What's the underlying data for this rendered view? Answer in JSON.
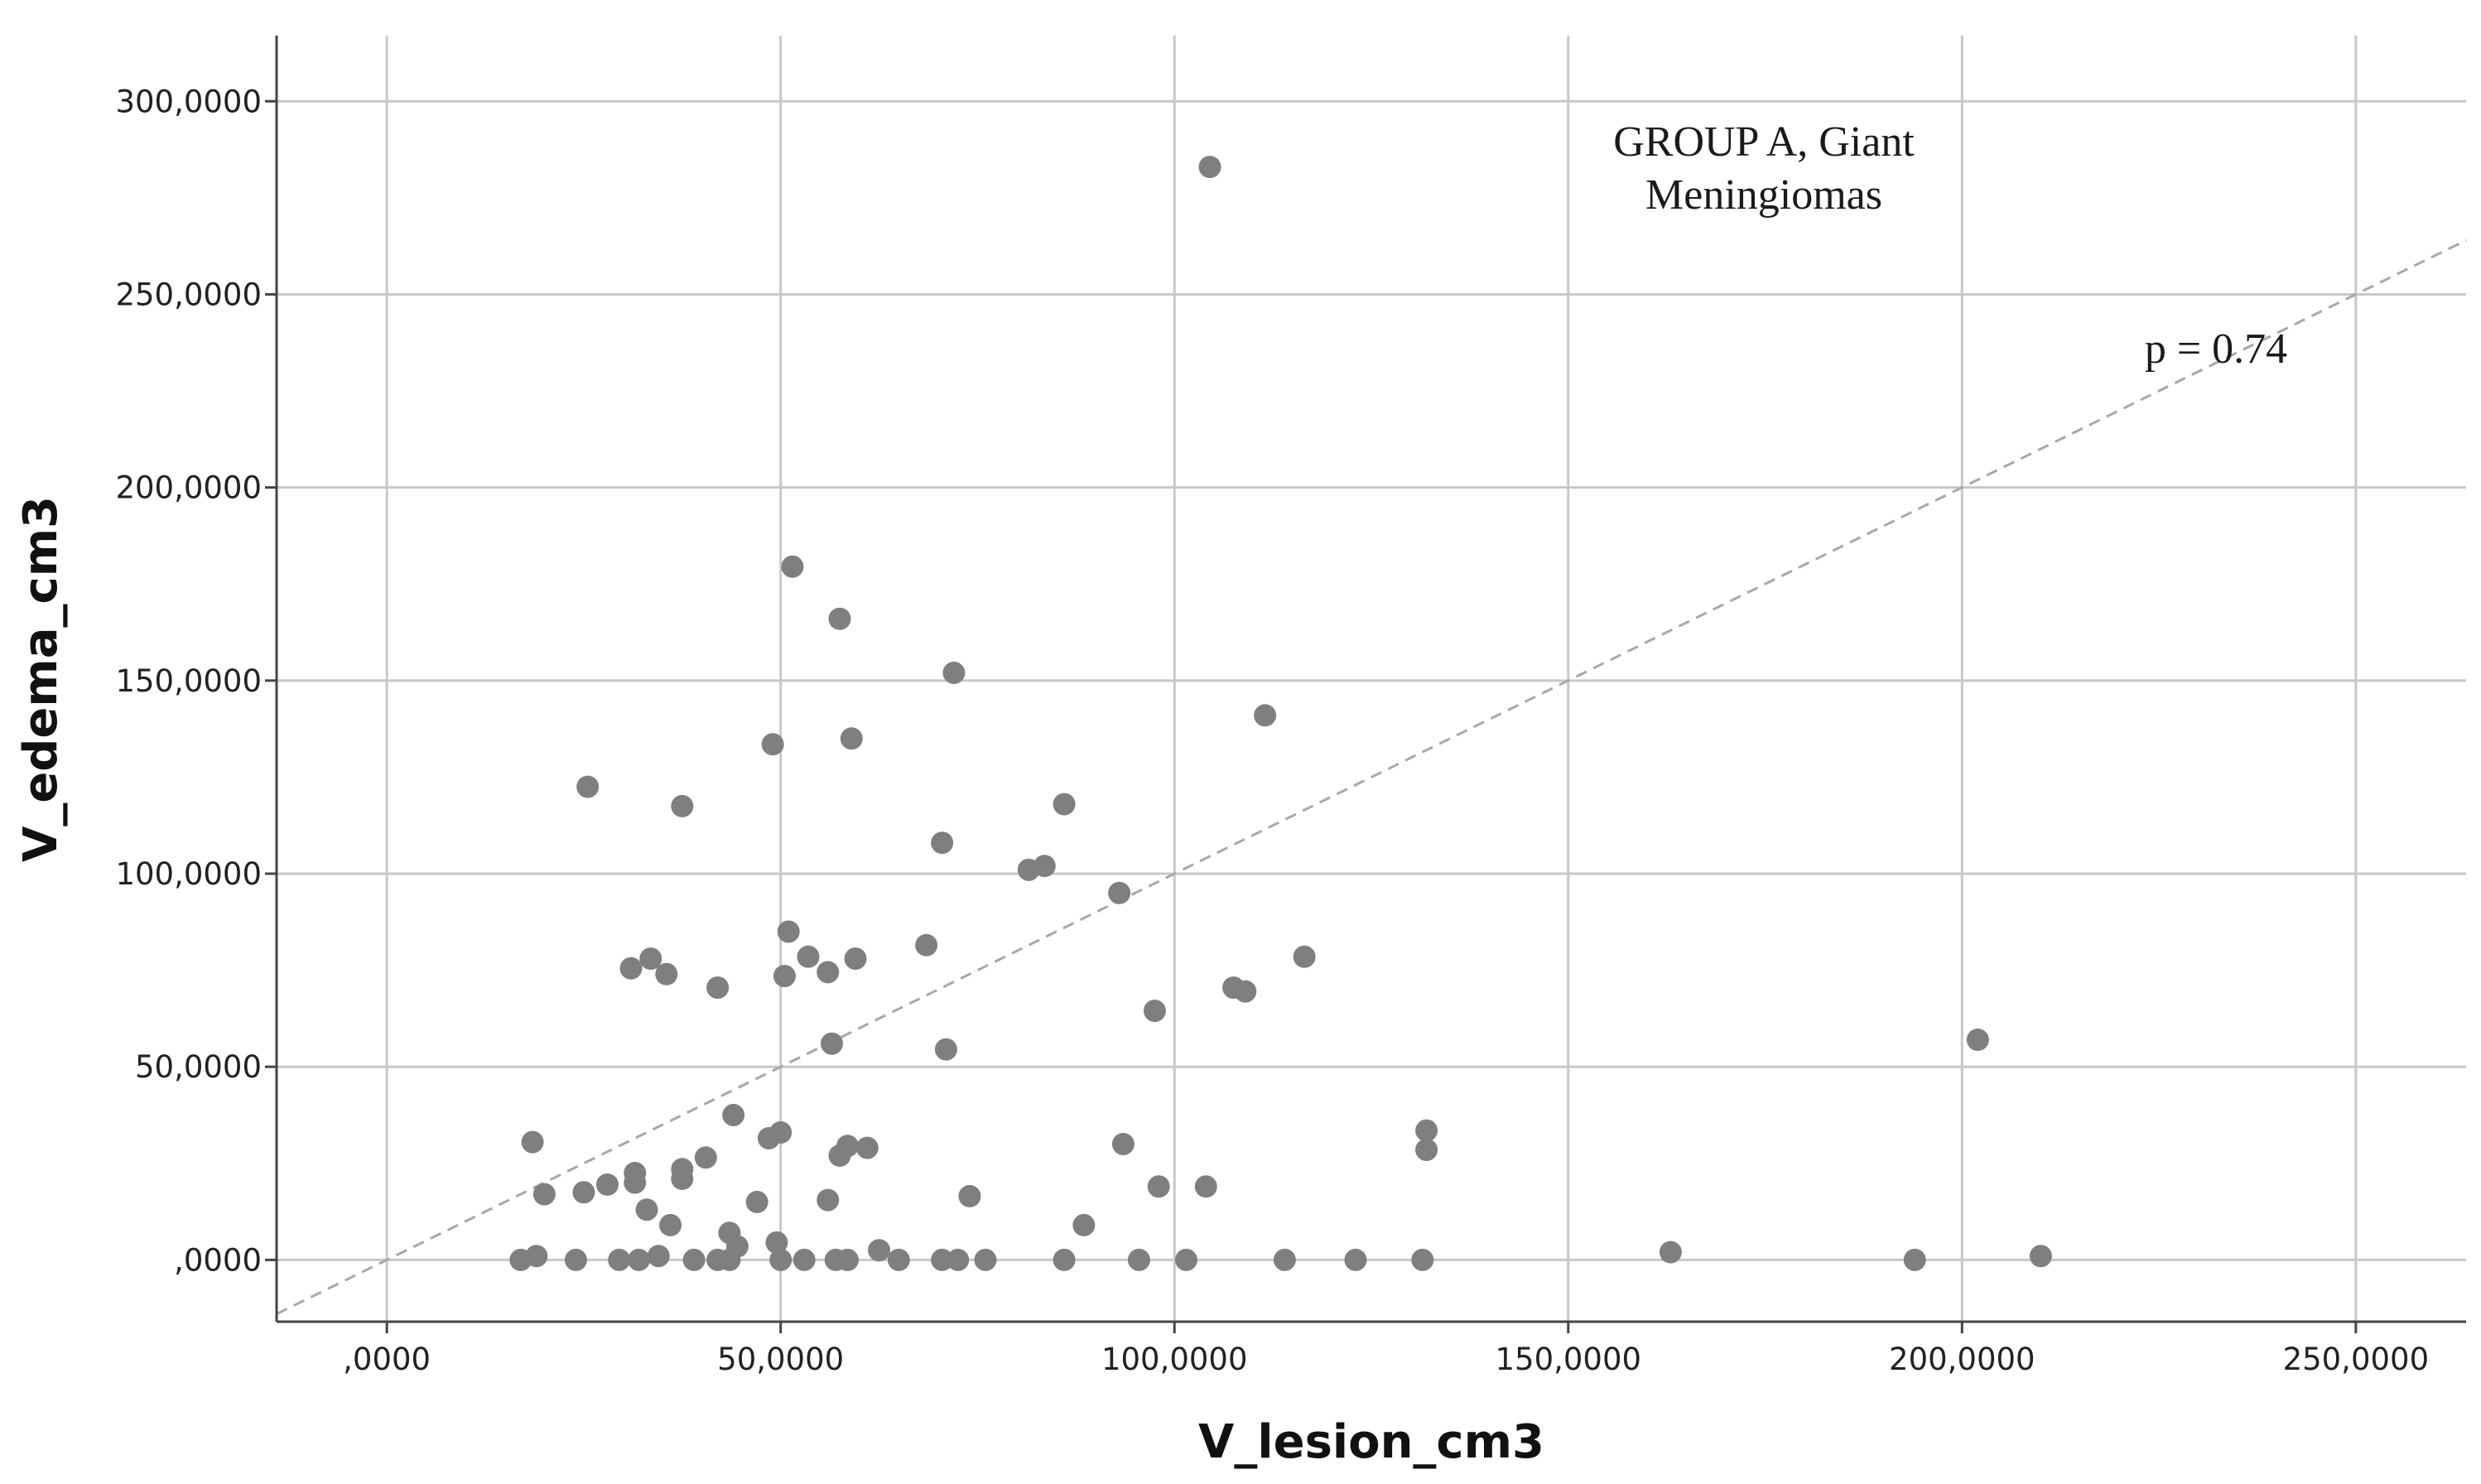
{
  "chart_data": {
    "type": "scatter",
    "xlabel": "V_lesion_cm3",
    "ylabel": "V_edema_cm3",
    "xlim": [
      -14,
      264
    ],
    "ylim": [
      -16,
      317
    ],
    "xticks": [
      0,
      50,
      100,
      150,
      200,
      250
    ],
    "yticks": [
      0,
      50,
      100,
      150,
      200,
      250,
      300
    ],
    "xtick_labels": [
      ",0000",
      "50,0000",
      "100,0000",
      "150,0000",
      "200,0000",
      "250,0000"
    ],
    "ytick_labels": [
      ",0000",
      "50,0000",
      "100,0000",
      "150,0000",
      "200,0000",
      "250,0000",
      "300,0000"
    ],
    "grid": true,
    "reference_line": {
      "style": "dashed",
      "from": [
        -14,
        -14
      ],
      "to": [
        264,
        264
      ]
    },
    "annotations": {
      "title_lines": [
        "GROUP A, Giant",
        "Meningiomas"
      ],
      "p_value": "p = 0.74"
    },
    "series": [
      {
        "name": "Group A",
        "color": "#7f7f7f",
        "points": [
          [
            104.5,
            283
          ],
          [
            51.5,
            179.5
          ],
          [
            57.5,
            166
          ],
          [
            72,
            152
          ],
          [
            111.5,
            141
          ],
          [
            59,
            135
          ],
          [
            49,
            133.5
          ],
          [
            25.5,
            122.5
          ],
          [
            37.5,
            117.5
          ],
          [
            86,
            118
          ],
          [
            70.5,
            108
          ],
          [
            81.5,
            101
          ],
          [
            83.5,
            102
          ],
          [
            93,
            95
          ],
          [
            51,
            85
          ],
          [
            68.5,
            81.5
          ],
          [
            53.5,
            78.5
          ],
          [
            59.5,
            78
          ],
          [
            116.5,
            78.5
          ],
          [
            33.5,
            78
          ],
          [
            31,
            75.5
          ],
          [
            35.5,
            74
          ],
          [
            50.5,
            73.5
          ],
          [
            56,
            74.5
          ],
          [
            42,
            70.5
          ],
          [
            107.5,
            70.5
          ],
          [
            109,
            69.5
          ],
          [
            97.5,
            64.5
          ],
          [
            56.5,
            56
          ],
          [
            71,
            54.5
          ],
          [
            202,
            57
          ],
          [
            44,
            37.5
          ],
          [
            50,
            33
          ],
          [
            48.5,
            31.5
          ],
          [
            18.5,
            30.5
          ],
          [
            93.5,
            30
          ],
          [
            58.5,
            29.5
          ],
          [
            61,
            29
          ],
          [
            57.5,
            27
          ],
          [
            40.5,
            26.5
          ],
          [
            132,
            33.5
          ],
          [
            132,
            28.5
          ],
          [
            37.5,
            23.5
          ],
          [
            31.5,
            22.5
          ],
          [
            37.5,
            21
          ],
          [
            31.5,
            20
          ],
          [
            28,
            19.5
          ],
          [
            25,
            17.5
          ],
          [
            20,
            17
          ],
          [
            74,
            16.5
          ],
          [
            98,
            19
          ],
          [
            104,
            19
          ],
          [
            56,
            15.5
          ],
          [
            47,
            15
          ],
          [
            33,
            13
          ],
          [
            36,
            9
          ],
          [
            88.5,
            9
          ],
          [
            43.5,
            7
          ],
          [
            49.5,
            4.5
          ],
          [
            44.5,
            3.5
          ],
          [
            62.5,
            2.5
          ],
          [
            163,
            2
          ],
          [
            210,
            1
          ],
          [
            19,
            1
          ],
          [
            17,
            0
          ],
          [
            24,
            0
          ],
          [
            29.5,
            0
          ],
          [
            32,
            0
          ],
          [
            34.5,
            1
          ],
          [
            39,
            0
          ],
          [
            42,
            0
          ],
          [
            43.5,
            0
          ],
          [
            50,
            0
          ],
          [
            53,
            0
          ],
          [
            57,
            0
          ],
          [
            58.5,
            0
          ],
          [
            65,
            0
          ],
          [
            70.5,
            0
          ],
          [
            72.5,
            0
          ],
          [
            76,
            0
          ],
          [
            86,
            0
          ],
          [
            95.5,
            0
          ],
          [
            101.5,
            0
          ],
          [
            114,
            0
          ],
          [
            123,
            0
          ],
          [
            131.5,
            0
          ],
          [
            194,
            0
          ]
        ]
      }
    ]
  }
}
